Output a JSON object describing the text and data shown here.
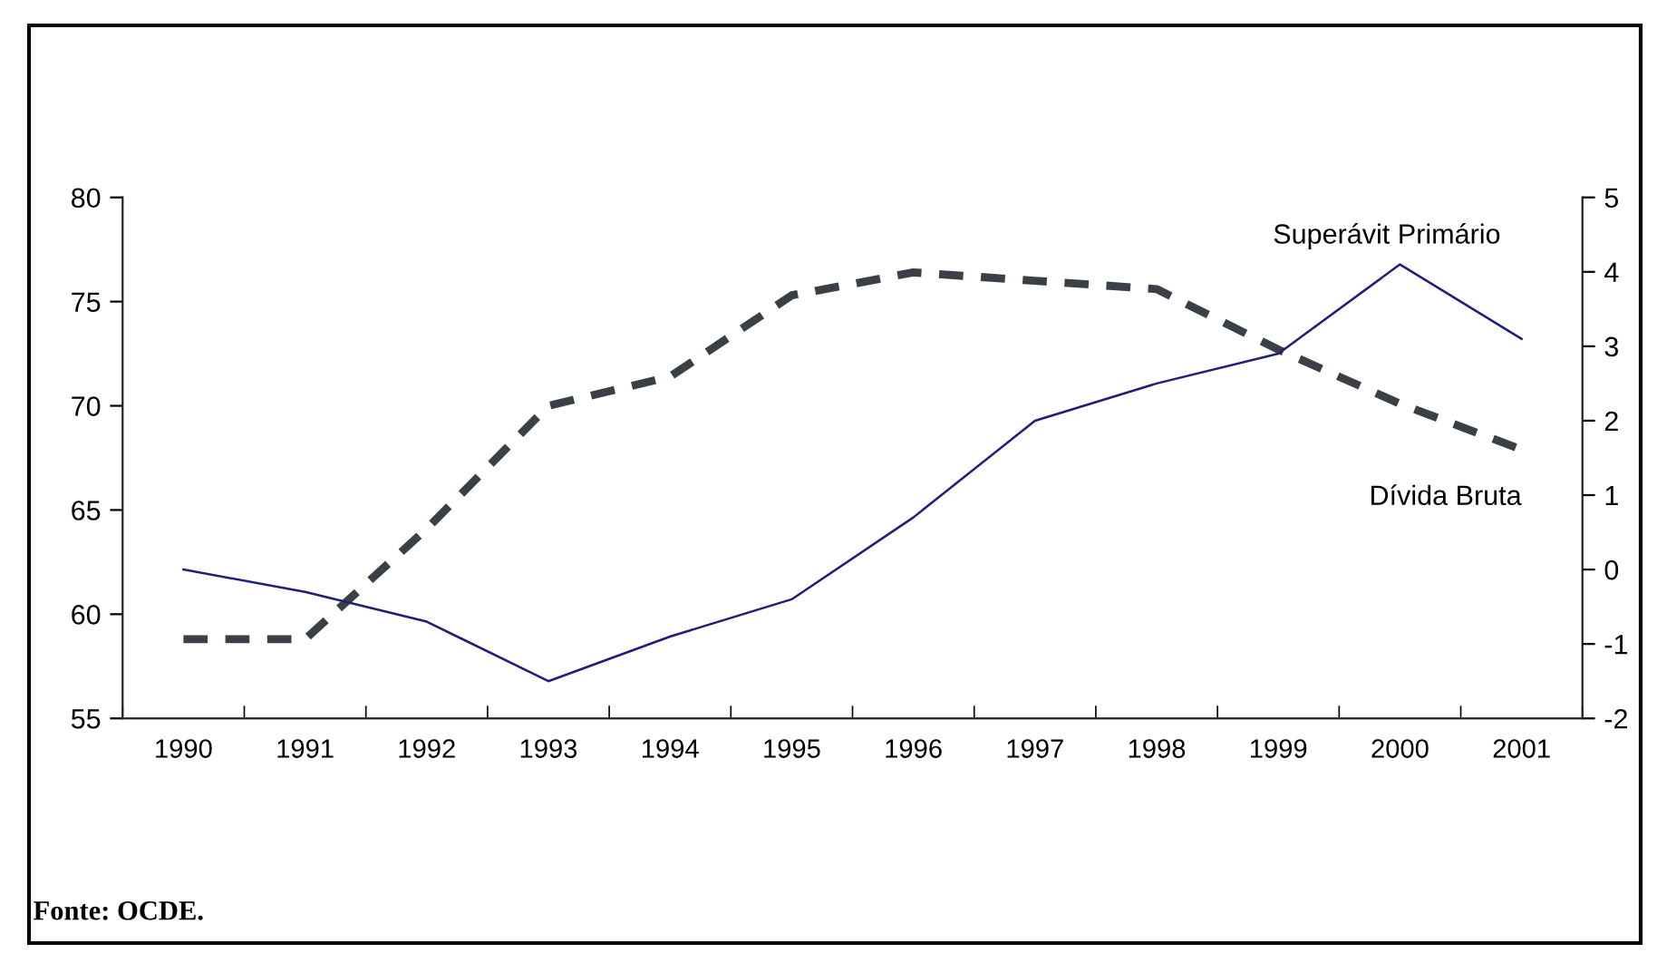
{
  "chart_data": {
    "type": "line",
    "categories": [
      "1990",
      "1991",
      "1992",
      "1993",
      "1994",
      "1995",
      "1996",
      "1997",
      "1998",
      "1999",
      "2000",
      "2001"
    ],
    "series": [
      {
        "name": "Dívida Bruta",
        "color": "#3a4046",
        "line_style": "dashed",
        "values": [
          58.8,
          58.8,
          64.1,
          70.0,
          71.4,
          75.3,
          76.4,
          76.0,
          75.6,
          72.7,
          70.1,
          67.9
        ]
      },
      {
        "name": "Superávit Primário",
        "color": "#1f1f7a",
        "line_style": "solid",
        "axis": "y2",
        "values": [
          0.0,
          -0.3,
          -0.7,
          -1.5,
          -0.9,
          -0.4,
          0.7,
          2.0,
          2.5,
          2.9,
          4.1,
          3.1
        ]
      }
    ],
    "ylim": [
      55,
      80
    ],
    "yticks": [
      55,
      60,
      65,
      70,
      75,
      80
    ],
    "y2lim": [
      -2,
      5
    ],
    "y2ticks": [
      -2,
      -1,
      0,
      1,
      2,
      3,
      4,
      5
    ],
    "grid": false,
    "legend": false,
    "annotations": [
      "Fonte: OCDE."
    ]
  }
}
